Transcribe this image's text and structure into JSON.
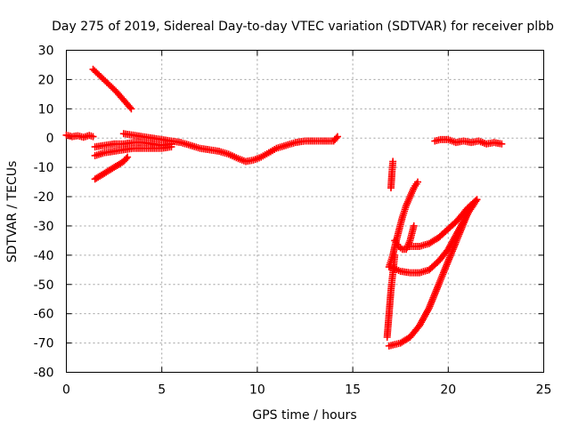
{
  "chart_data": {
    "type": "scatter",
    "title": "Day 275 of 2019, Sidereal Day-to-day VTEC variation (SDTVAR) for receiver plbb",
    "xlabel": "GPS time / hours",
    "ylabel": "SDTVAR / TECUs",
    "xlim": [
      0,
      25
    ],
    "ylim": [
      -80,
      30
    ],
    "xticks": [
      0,
      5,
      10,
      15,
      20,
      25
    ],
    "yticks": [
      30,
      20,
      10,
      0,
      -10,
      -20,
      -30,
      -40,
      -50,
      -60,
      -70,
      -80
    ],
    "grid": true,
    "marker": "plus",
    "color": "#ff0000",
    "series": [
      {
        "x": [
          0,
          0.3,
          0.6,
          0.9,
          1.2,
          1.4
        ],
        "y": [
          1,
          0.5,
          0.8,
          0.3,
          0.9,
          0.5
        ]
      },
      {
        "x": [
          1.4,
          1.8,
          2.2,
          2.6,
          3.0,
          3.4
        ],
        "y": [
          23.5,
          21,
          18.5,
          16,
          13,
          10
        ]
      },
      {
        "x": [
          1.5,
          2.0,
          2.5,
          3.0,
          3.5,
          4.0,
          4.5,
          5.0,
          5.5
        ],
        "y": [
          -3,
          -2.5,
          -2,
          -2,
          -1.5,
          -1.5,
          -2,
          -2.5,
          -2
        ]
      },
      {
        "x": [
          1.5,
          2.0,
          2.5,
          3.0,
          3.5,
          4.0,
          4.5,
          5.0,
          5.5
        ],
        "y": [
          -6,
          -5,
          -4.5,
          -4,
          -3.5,
          -3.5,
          -3.5,
          -3.5,
          -3
        ]
      },
      {
        "x": [
          1.5,
          2.0,
          2.5,
          3.0,
          3.2
        ],
        "y": [
          -14,
          -12,
          -10,
          -8,
          -6.5
        ]
      },
      {
        "x": [
          3.0,
          3.5,
          4.0,
          4.5,
          5.0,
          5.5,
          6.0,
          6.5,
          7.0,
          7.5,
          8.0,
          8.5,
          9.0,
          9.4,
          9.8,
          10.2,
          10.6,
          11.0,
          11.5,
          12.0,
          12.5,
          13.0,
          13.5,
          14.0,
          14.2
        ],
        "y": [
          1.5,
          1.0,
          0.5,
          0,
          -0.5,
          -1,
          -1.5,
          -2.5,
          -3.5,
          -4,
          -4.5,
          -5.5,
          -7,
          -8,
          -7.5,
          -6.5,
          -5,
          -3.5,
          -2.5,
          -1.5,
          -1,
          -1,
          -1,
          -1,
          0.5
        ]
      },
      {
        "x": [
          16.8,
          16.9,
          17.0,
          17.1,
          17.2
        ],
        "y": [
          -68,
          -60,
          -52,
          -46,
          -40
        ]
      },
      {
        "x": [
          17.0,
          17.05,
          17.1
        ],
        "y": [
          -17,
          -12,
          -8
        ]
      },
      {
        "x": [
          16.9,
          17.0,
          17.1,
          17.2,
          17.4,
          17.6,
          17.8,
          18.0,
          18.2,
          18.4
        ],
        "y": [
          -44,
          -42,
          -40,
          -37,
          -32,
          -27,
          -23,
          -20,
          -17,
          -15
        ]
      },
      {
        "x": [
          17.2,
          17.4,
          17.6,
          17.8,
          18.0,
          18.2
        ],
        "y": [
          -35,
          -37,
          -38,
          -38,
          -35,
          -30
        ]
      },
      {
        "x": [
          17.0,
          17.5,
          18.0,
          18.5,
          19.0,
          19.5,
          20.0,
          20.5,
          21.0,
          21.5
        ],
        "y": [
          -44,
          -45.5,
          -46,
          -46,
          -45,
          -42,
          -38,
          -32,
          -26,
          -21
        ]
      },
      {
        "x": [
          18.0,
          18.5,
          19.0,
          19.5,
          20.0,
          20.5,
          21.0,
          21.5
        ],
        "y": [
          -37,
          -37,
          -36,
          -34,
          -31,
          -28,
          -24,
          -21
        ]
      },
      {
        "x": [
          16.9,
          17.5,
          18.0,
          18.5,
          19.0,
          19.5,
          20.0,
          20.5,
          21.0
        ],
        "y": [
          -71,
          -70,
          -68,
          -64,
          -58,
          -50,
          -42,
          -34,
          -26
        ]
      },
      {
        "x": [
          19.3,
          19.6,
          20.0,
          20.4,
          20.8,
          21.2,
          21.6,
          22.0,
          22.4,
          22.8
        ],
        "y": [
          -1,
          -0.5,
          -0.5,
          -1.5,
          -1,
          -1.5,
          -1,
          -2,
          -1.5,
          -2
        ]
      }
    ]
  }
}
